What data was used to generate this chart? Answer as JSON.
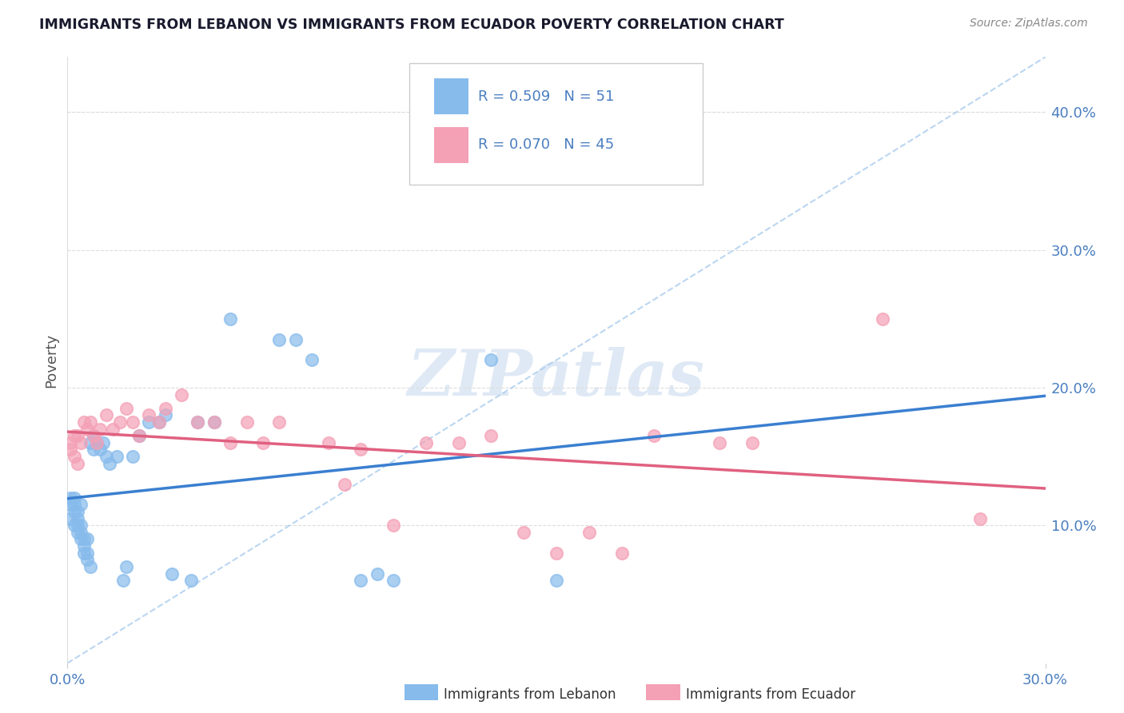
{
  "title": "IMMIGRANTS FROM LEBANON VS IMMIGRANTS FROM ECUADOR POVERTY CORRELATION CHART",
  "source": "Source: ZipAtlas.com",
  "ylabel": "Poverty",
  "ylabel_right_ticks": [
    "10.0%",
    "20.0%",
    "30.0%",
    "40.0%"
  ],
  "ylabel_right_vals": [
    0.1,
    0.2,
    0.3,
    0.4
  ],
  "xmin": 0.0,
  "xmax": 0.3,
  "ymin": 0.0,
  "ymax": 0.44,
  "R_lebanon": 0.509,
  "N_lebanon": 51,
  "R_ecuador": 0.07,
  "N_ecuador": 45,
  "color_lebanon": "#87BBEC",
  "color_ecuador": "#F4A0B5",
  "color_line_lebanon": "#3A7FD0",
  "color_line_ecuador": "#E06080",
  "color_diag": "#AACCEE",
  "lebanon_x": [
    0.001,
    0.001,
    0.001,
    0.002,
    0.002,
    0.002,
    0.002,
    0.003,
    0.003,
    0.003,
    0.003,
    0.004,
    0.004,
    0.004,
    0.004,
    0.005,
    0.005,
    0.005,
    0.006,
    0.006,
    0.006,
    0.007,
    0.007,
    0.008,
    0.008,
    0.009,
    0.01,
    0.011,
    0.012,
    0.013,
    0.015,
    0.017,
    0.018,
    0.02,
    0.022,
    0.025,
    0.028,
    0.03,
    0.032,
    0.038,
    0.04,
    0.045,
    0.05,
    0.065,
    0.07,
    0.075,
    0.09,
    0.095,
    0.1,
    0.13,
    0.15
  ],
  "lebanon_y": [
    0.105,
    0.115,
    0.12,
    0.1,
    0.11,
    0.115,
    0.12,
    0.095,
    0.1,
    0.105,
    0.11,
    0.09,
    0.095,
    0.1,
    0.115,
    0.08,
    0.085,
    0.09,
    0.075,
    0.08,
    0.09,
    0.07,
    0.16,
    0.155,
    0.165,
    0.16,
    0.155,
    0.16,
    0.15,
    0.145,
    0.15,
    0.06,
    0.07,
    0.15,
    0.165,
    0.175,
    0.175,
    0.18,
    0.065,
    0.06,
    0.175,
    0.175,
    0.25,
    0.235,
    0.235,
    0.22,
    0.06,
    0.065,
    0.06,
    0.22,
    0.06
  ],
  "ecuador_x": [
    0.001,
    0.001,
    0.002,
    0.002,
    0.003,
    0.003,
    0.004,
    0.005,
    0.006,
    0.007,
    0.008,
    0.009,
    0.01,
    0.012,
    0.014,
    0.016,
    0.018,
    0.02,
    0.022,
    0.025,
    0.028,
    0.03,
    0.035,
    0.04,
    0.045,
    0.05,
    0.055,
    0.06,
    0.065,
    0.08,
    0.085,
    0.09,
    0.1,
    0.11,
    0.12,
    0.13,
    0.14,
    0.15,
    0.16,
    0.17,
    0.18,
    0.2,
    0.21,
    0.25,
    0.28
  ],
  "ecuador_y": [
    0.155,
    0.16,
    0.15,
    0.165,
    0.145,
    0.165,
    0.16,
    0.175,
    0.17,
    0.175,
    0.165,
    0.16,
    0.17,
    0.18,
    0.17,
    0.175,
    0.185,
    0.175,
    0.165,
    0.18,
    0.175,
    0.185,
    0.195,
    0.175,
    0.175,
    0.16,
    0.175,
    0.16,
    0.175,
    0.16,
    0.13,
    0.155,
    0.1,
    0.16,
    0.16,
    0.165,
    0.095,
    0.08,
    0.095,
    0.08,
    0.165,
    0.16,
    0.16,
    0.25,
    0.105
  ]
}
